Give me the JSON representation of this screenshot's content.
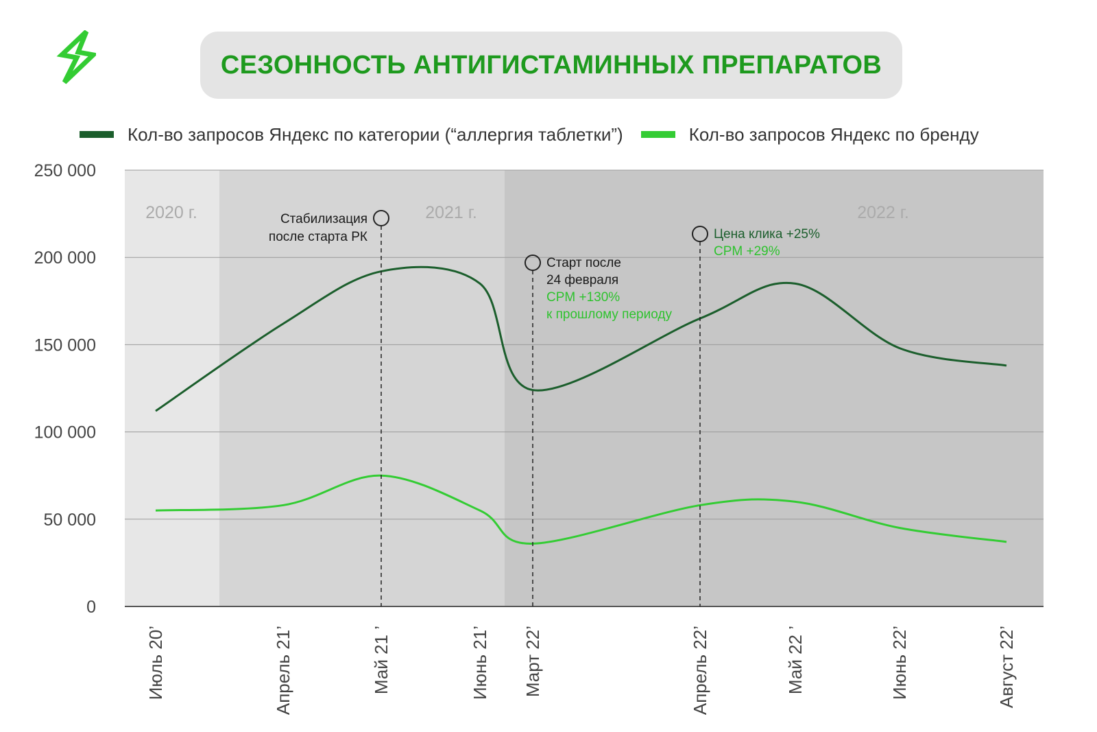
{
  "colors": {
    "title": "#1e9a1e",
    "category_line": "#1b5e2c",
    "brand_line": "#33cc33",
    "band_2020": "#e7e7e7",
    "band_2021": "#d5d5d5",
    "band_2022": "#c6c6c6",
    "annotation_text": "#1a1a1a",
    "annotation_green": "#2ec22e",
    "annotation_dark_green": "#1b5e2c"
  },
  "title": "СЕЗОННОСТЬ АНТИГИСТАМИННЫХ ПРЕПАРАТОВ",
  "chart_data": {
    "type": "line",
    "title": "СЕЗОННОСТЬ АНТИГИСТАМИННЫХ ПРЕПАРАТОВ",
    "xlabel": "",
    "ylabel": "",
    "ylim": [
      0,
      250000
    ],
    "yticks": [
      "0",
      "50 000",
      "100 000",
      "150 000",
      "200 000",
      "250 000"
    ],
    "ytick_values": [
      0,
      50000,
      100000,
      150000,
      200000,
      250000
    ],
    "grid": true,
    "legend_position": "top",
    "categories": [
      "Июль 20’",
      "Апрель 21’",
      "Май 21 ’",
      "Июнь 21’",
      "Март 22’",
      "Апрель 22’",
      "Май 22 ’",
      "Июнь 22’",
      "Август 22’"
    ],
    "series": [
      {
        "name": "Кол-во запросов Яндекс по категории (“аллергия таблетки”)",
        "values": [
          112000,
          162000,
          192000,
          185000,
          124000,
          165000,
          185000,
          148000,
          138000
        ]
      },
      {
        "name": "Кол-во запросов Яндекс по бренду",
        "values": [
          55000,
          58000,
          75000,
          55000,
          36000,
          58000,
          60000,
          45000,
          37000
        ]
      }
    ],
    "year_bands": [
      {
        "label": "2020 г."
      },
      {
        "label": "2021 г."
      },
      {
        "label": "2022 г."
      }
    ],
    "annotations": [
      {
        "lines": [
          "Стабилизация",
          "после старта РК"
        ],
        "green_lines": []
      },
      {
        "lines": [
          "Старт после",
          "24 февраля"
        ],
        "green_lines": [
          "CPM +130%",
          "к прошлому периоду"
        ]
      },
      {
        "lines": [
          "Цена клика +25%"
        ],
        "green_lines": [
          "CPM +29%"
        ]
      }
    ]
  }
}
